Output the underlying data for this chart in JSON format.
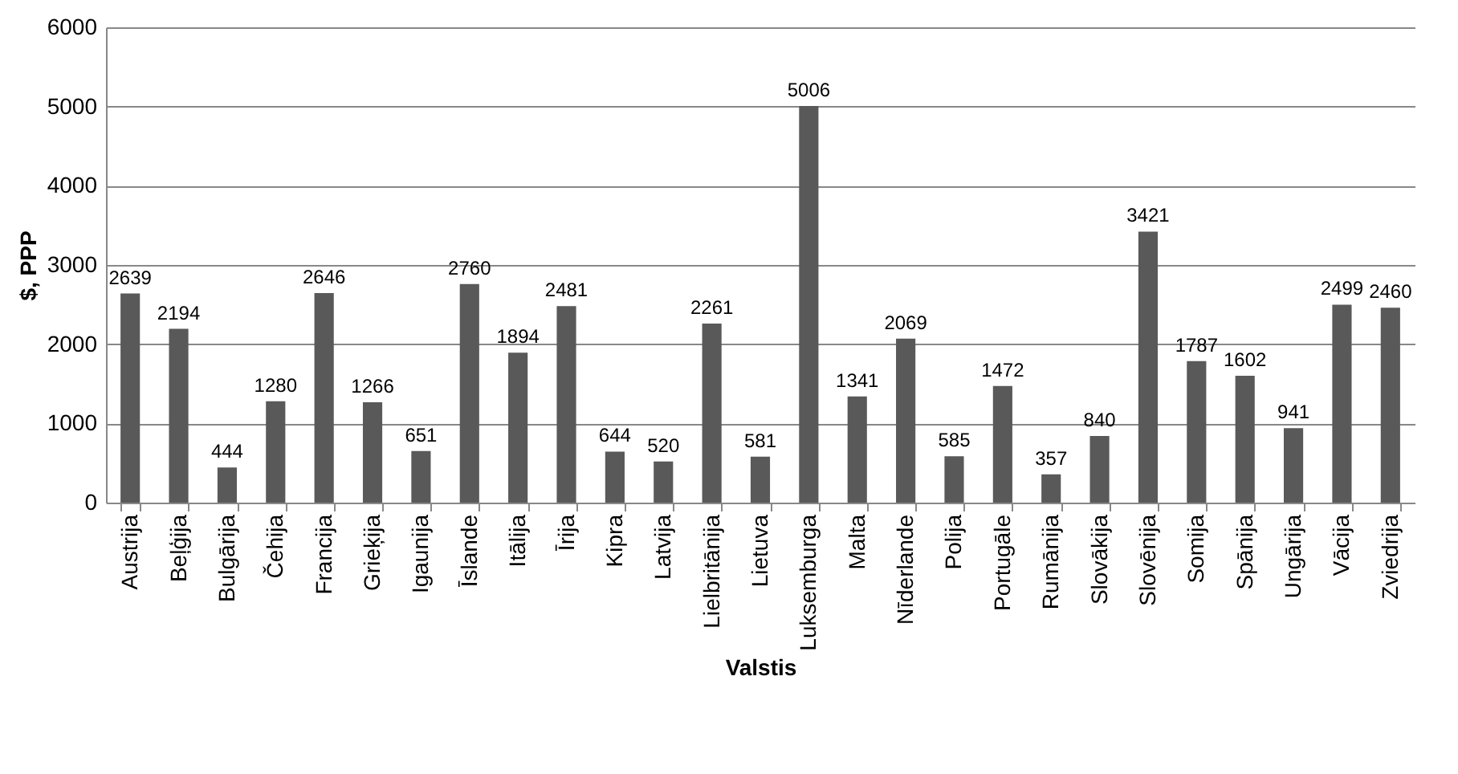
{
  "chart_data": {
    "type": "bar",
    "xlabel": "Valstis",
    "ylabel": "$, PPP",
    "categories": [
      "Austrija",
      "Beļģija",
      "Bulgārija",
      "Čehija",
      "Francija",
      "Grieķija",
      "Igaunija",
      "Īslande",
      "Itālija",
      "Īrija",
      "Kipra",
      "Latvija",
      "Lielbritānija",
      "Lietuva",
      "Luksemburga",
      "Malta",
      "Nīderlande",
      "Polija",
      "Portugāle",
      "Rumānija",
      "Slovākija",
      "Slovēnija",
      "Somija",
      "Spānija",
      "Ungārija",
      "Vācija",
      "Zviedrija"
    ],
    "values": [
      2639,
      2194,
      444,
      1280,
      2646,
      1266,
      651,
      2760,
      1894,
      2481,
      644,
      520,
      2261,
      581,
      5006,
      1341,
      2069,
      585,
      1472,
      357,
      840,
      3421,
      1787,
      1602,
      941,
      2499,
      2460
    ],
    "color": "#595959",
    "ylim": [
      0,
      6000
    ],
    "yticks": [
      0,
      1000,
      2000,
      3000,
      4000,
      5000,
      6000
    ],
    "grid": "y",
    "data_labels": true
  }
}
